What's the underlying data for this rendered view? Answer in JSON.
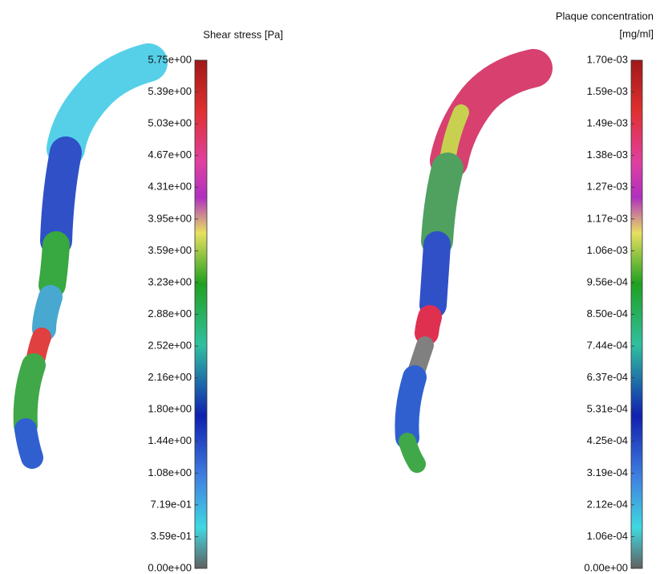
{
  "panels": [
    {
      "title_lines": [
        "Shear stress [Pa]"
      ],
      "ticks": [
        "5.75e+00",
        "5.39e+00",
        "5.03e+00",
        "4.67e+00",
        "4.31e+00",
        "3.95e+00",
        "3.59e+00",
        "3.23e+00",
        "2.88e+00",
        "2.52e+00",
        "2.16e+00",
        "1.80e+00",
        "1.44e+00",
        "1.08e+00",
        "7.19e-01",
        "3.59e-01",
        "0.00e+00"
      ]
    },
    {
      "title_lines": [
        "Plaque concentration",
        "[mg/ml]"
      ],
      "ticks": [
        "1.70e-03",
        "1.59e-03",
        "1.49e-03",
        "1.38e-03",
        "1.27e-03",
        "1.17e-03",
        "1.06e-03",
        "9.56e-04",
        "8.50e-04",
        "7.44e-04",
        "6.37e-04",
        "5.31e-04",
        "4.25e-04",
        "3.19e-04",
        "2.12e-04",
        "1.06e-04",
        "0.00e+00"
      ]
    }
  ]
}
